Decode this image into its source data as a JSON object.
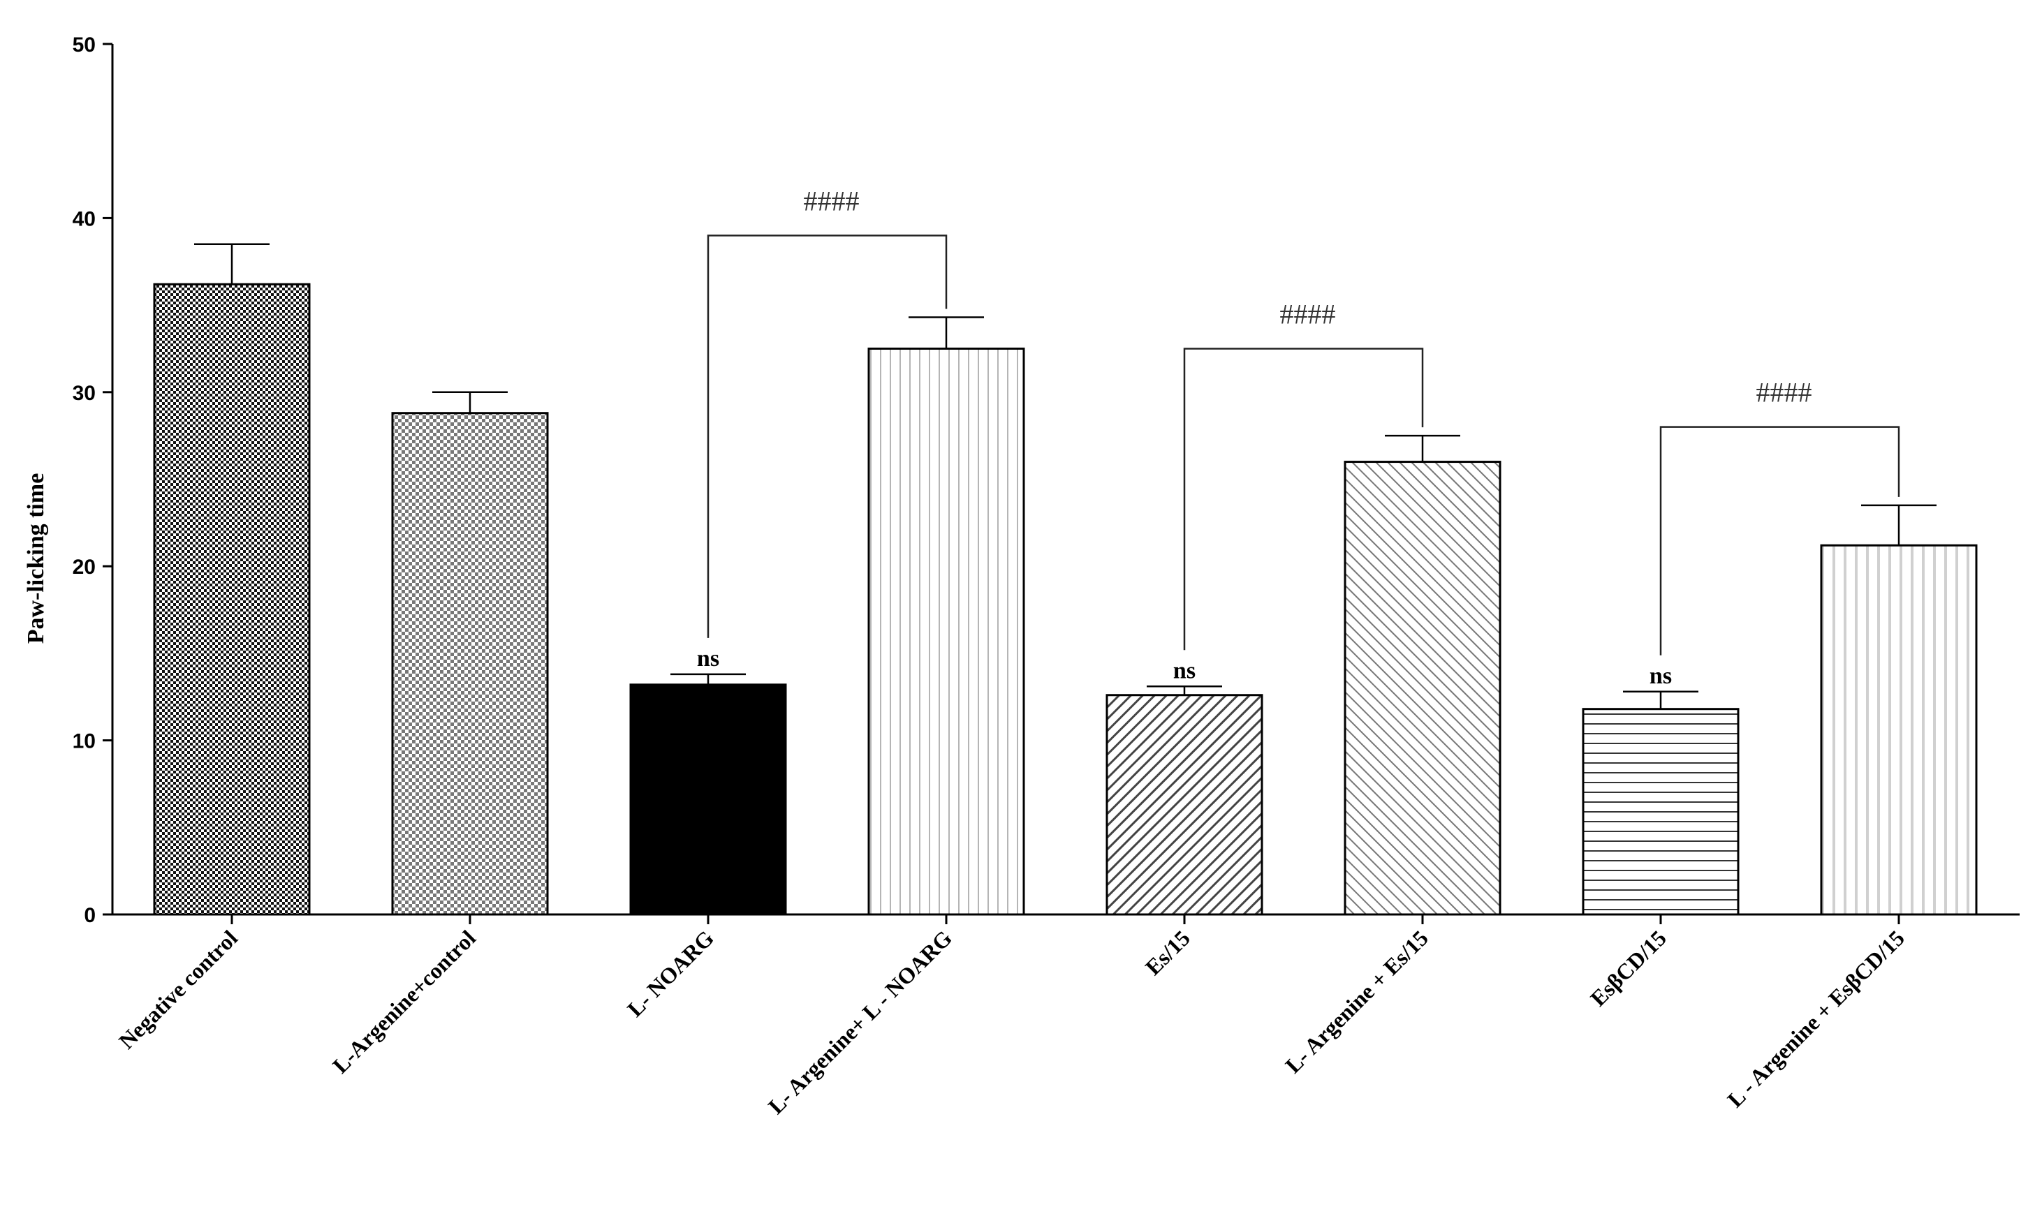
{
  "chart_data": {
    "type": "bar",
    "title": "",
    "xlabel": "",
    "ylabel": "Paw-licking time",
    "ylim": [
      0,
      50
    ],
    "yticks": [
      "0",
      "10",
      "20",
      "30",
      "40",
      "50"
    ],
    "grid": false,
    "legend": "none",
    "categories": [
      "Negative control",
      "L-Argenine+control",
      "L- NOARG",
      "L- Argenine+ L - NOARG",
      "Es/15",
      "L- Argenine + Es/15",
      "EsβCD/15",
      "L - Argenine + EsβCD/15"
    ],
    "values": [
      36.2,
      28.8,
      13.2,
      32.5,
      12.6,
      26.0,
      11.8,
      21.2
    ],
    "errors": [
      2.3,
      1.2,
      0.6,
      1.8,
      0.5,
      1.5,
      1.0,
      2.3
    ],
    "patterns": [
      "dense-checker",
      "light-checker",
      "solid-black",
      "vertical-lines",
      "diag-fine",
      "diag-light",
      "horizontal-lines",
      "vertical-light"
    ],
    "annotations": [
      {
        "label": "ns",
        "bar": 2
      },
      {
        "label": "ns",
        "bar": 4
      },
      {
        "label": "ns",
        "bar": 6
      }
    ],
    "brackets": [
      {
        "label": "####",
        "from": 2,
        "to": 3,
        "y": 39
      },
      {
        "label": "####",
        "from": 4,
        "to": 5,
        "y": 32.5
      },
      {
        "label": "####",
        "from": 6,
        "to": 7,
        "y": 28
      }
    ]
  }
}
